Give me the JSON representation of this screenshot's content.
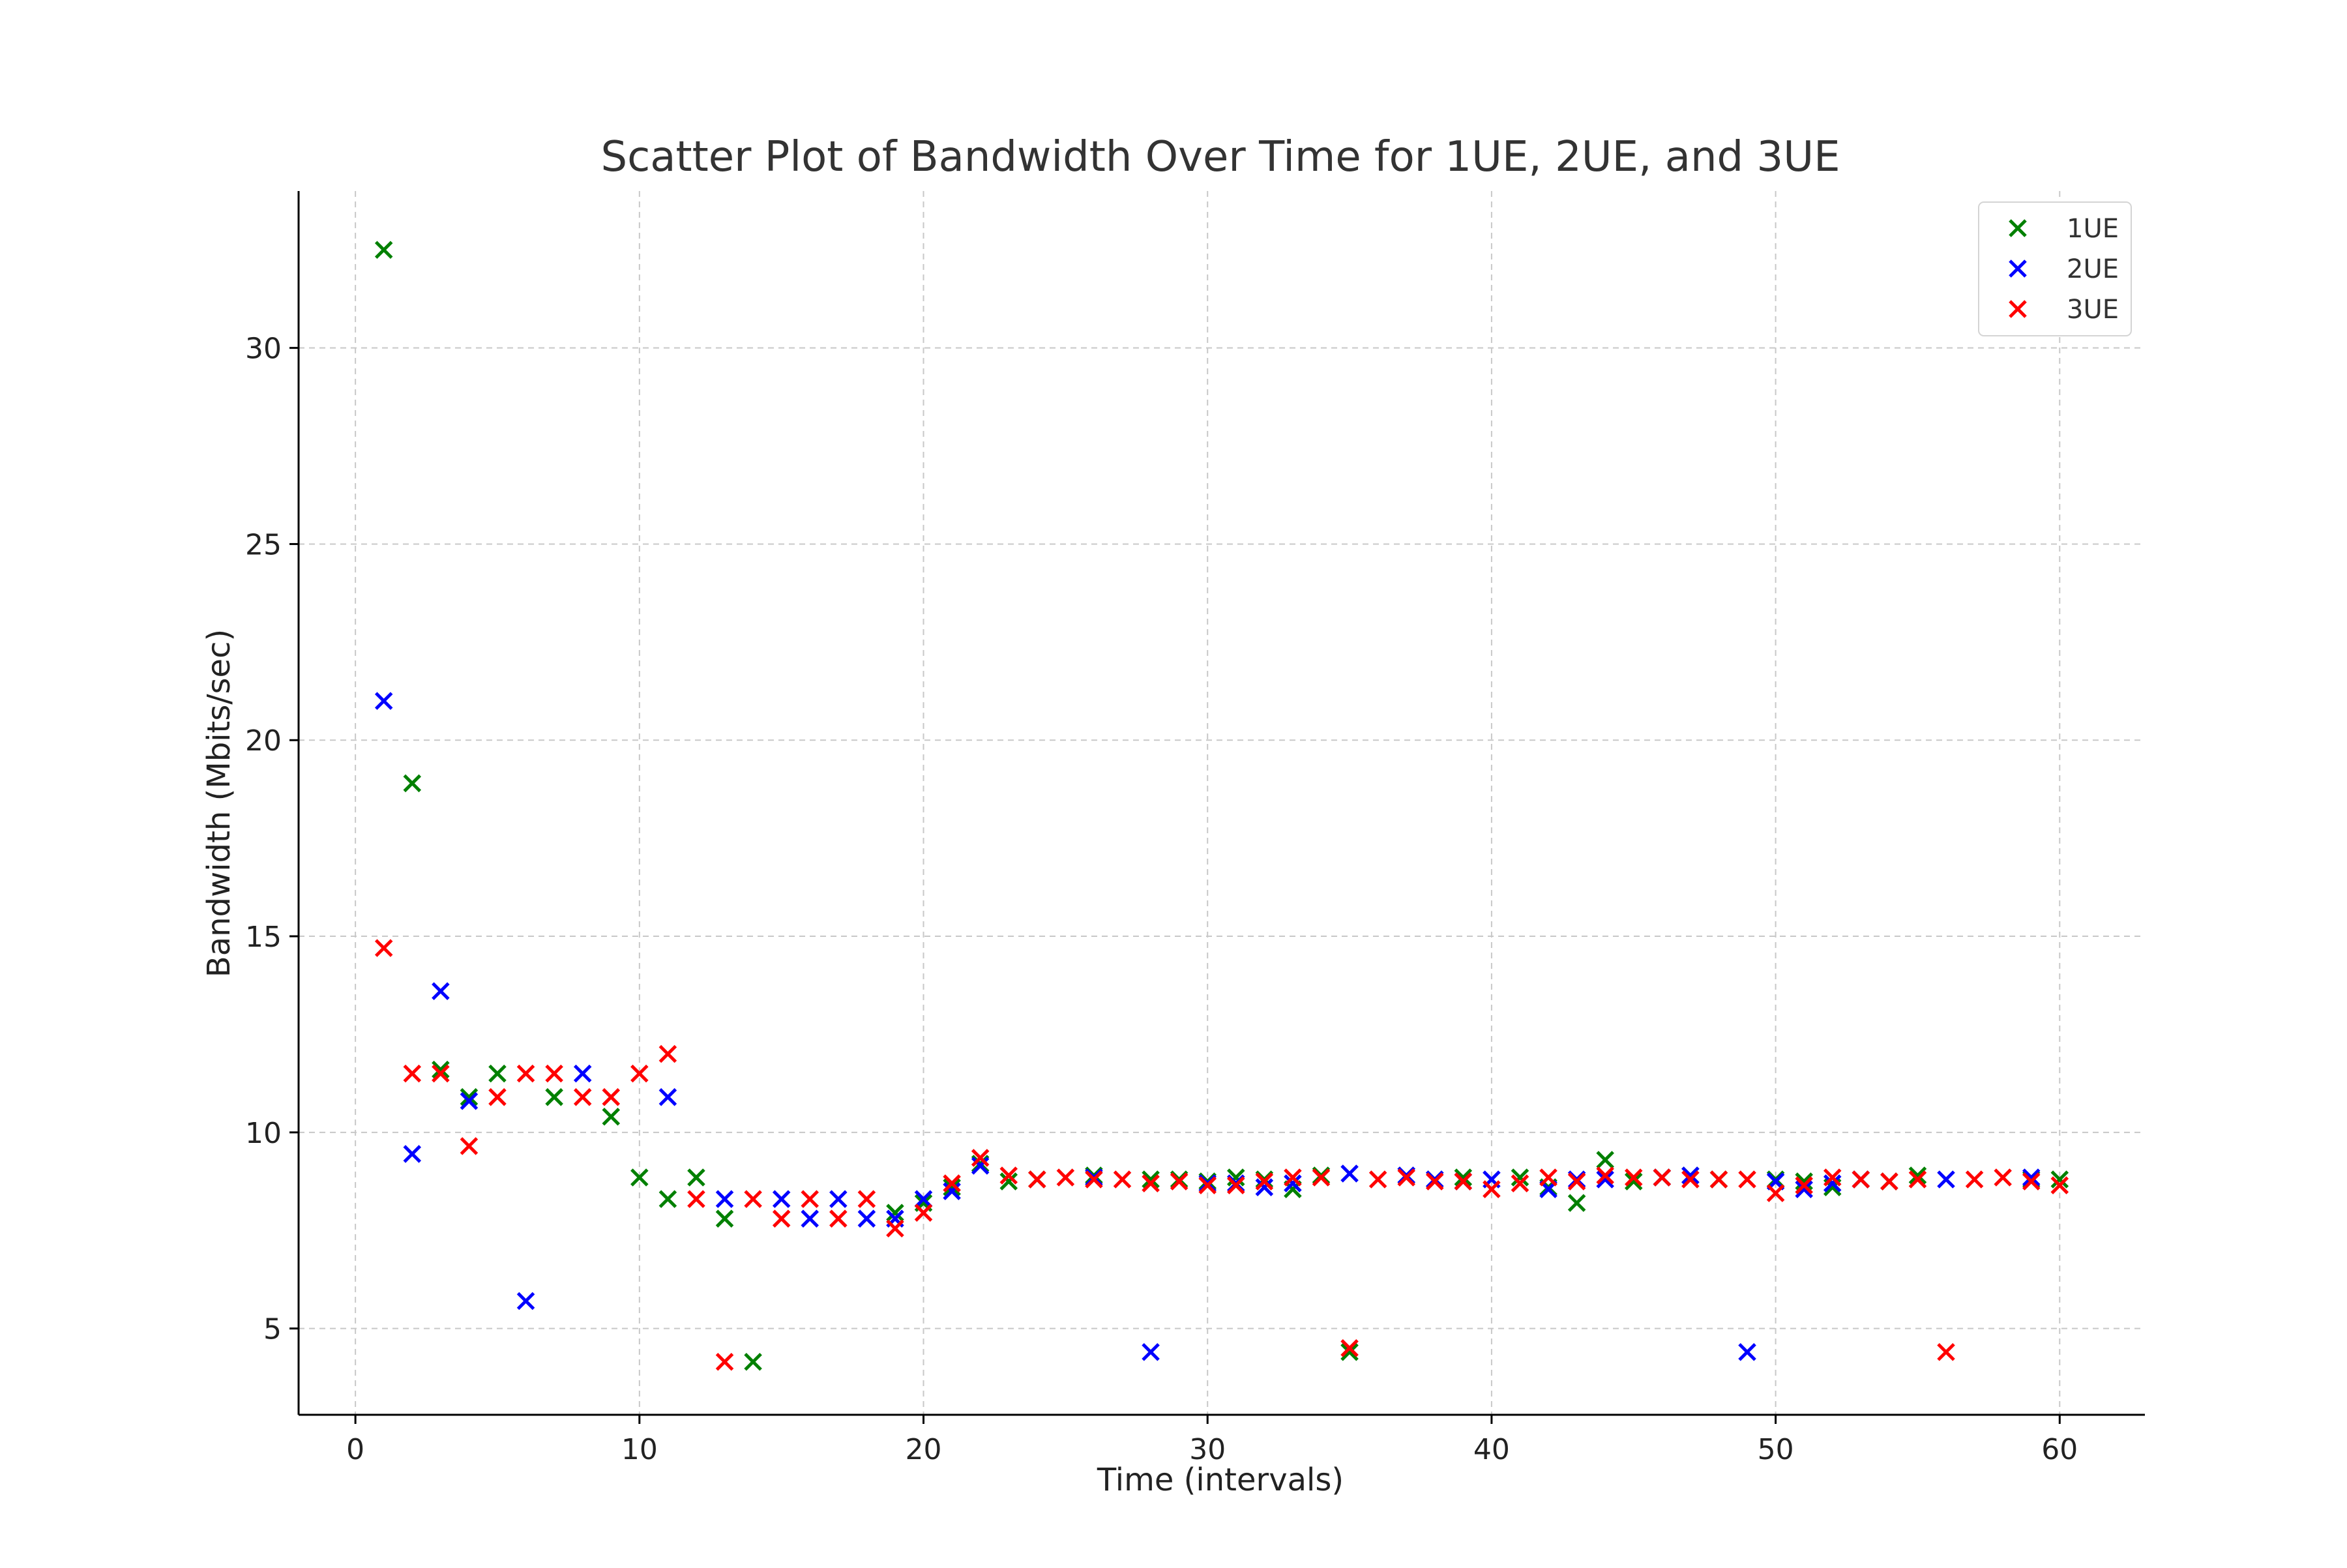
{
  "chart_data": {
    "type": "scatter",
    "title": "Scatter Plot of Bandwidth Over Time for 1UE, 2UE, and 3UE",
    "xlabel": "Time (intervals)",
    "ylabel": "Bandwidth (Mbits/sec)",
    "xlim": [
      -2,
      63
    ],
    "ylim": [
      2.8,
      34
    ],
    "xticks": [
      0,
      10,
      20,
      30,
      40,
      50,
      60
    ],
    "yticks": [
      5,
      10,
      15,
      20,
      25,
      30
    ],
    "xtick_labels": [
      "0",
      "10",
      "20",
      "30",
      "40",
      "50",
      "60"
    ],
    "ytick_labels": [
      "5",
      "10",
      "15",
      "20",
      "25",
      "30"
    ],
    "grid": true,
    "legend_position": "top-right",
    "marker": "x",
    "series": [
      {
        "name": "1UE",
        "color": "#008000",
        "x": [
          1,
          2,
          3,
          4,
          5,
          7,
          9,
          10,
          11,
          12,
          13,
          14,
          19,
          20,
          21,
          22,
          23,
          24,
          26,
          28,
          29,
          30,
          31,
          32,
          33,
          34,
          35,
          37,
          38,
          39,
          41,
          42,
          43,
          44,
          45,
          46,
          47,
          48,
          50,
          51,
          52,
          53,
          54,
          55,
          59,
          60
        ],
        "y": [
          32.5,
          18.9,
          11.6,
          10.9,
          11.5,
          10.9,
          10.4,
          8.85,
          8.3,
          8.85,
          7.8,
          4.15,
          7.95,
          8.2,
          8.6,
          9.2,
          8.75,
          8.8,
          8.9,
          8.8,
          8.8,
          8.75,
          8.85,
          8.8,
          8.55,
          8.9,
          4.4,
          8.9,
          8.8,
          8.85,
          8.85,
          8.6,
          8.2,
          9.3,
          8.75,
          8.85,
          8.9,
          8.8,
          8.8,
          8.75,
          8.6,
          8.8,
          8.75,
          8.9,
          8.8,
          8.8
        ]
      },
      {
        "name": "2UE",
        "color": "#0000ff",
        "x": [
          1,
          2,
          3,
          4,
          6,
          8,
          11,
          13,
          15,
          16,
          17,
          18,
          19,
          20,
          21,
          22,
          26,
          28,
          30,
          31,
          32,
          33,
          35,
          37,
          38,
          39,
          40,
          42,
          43,
          44,
          46,
          47,
          49,
          50,
          51,
          52,
          53,
          56,
          59
        ],
        "y": [
          21.0,
          9.45,
          13.6,
          10.8,
          5.7,
          11.5,
          10.9,
          8.3,
          8.3,
          7.8,
          8.3,
          7.8,
          7.8,
          8.3,
          8.5,
          9.15,
          8.85,
          4.4,
          8.7,
          8.7,
          8.6,
          8.7,
          8.95,
          8.9,
          8.8,
          8.75,
          8.8,
          8.55,
          8.8,
          8.8,
          8.85,
          8.9,
          4.4,
          8.75,
          8.55,
          8.7,
          8.8,
          8.8,
          8.85
        ]
      },
      {
        "name": "3UE",
        "color": "#ff0000",
        "x": [
          1,
          2,
          3,
          4,
          5,
          6,
          7,
          8,
          9,
          10,
          11,
          12,
          13,
          14,
          15,
          16,
          17,
          18,
          19,
          20,
          21,
          22,
          23,
          24,
          25,
          26,
          27,
          28,
          29,
          30,
          31,
          32,
          33,
          34,
          35,
          36,
          37,
          38,
          39,
          40,
          41,
          42,
          43,
          44,
          45,
          46,
          47,
          48,
          49,
          50,
          51,
          52,
          53,
          54,
          55,
          56,
          57,
          58,
          59,
          60
        ],
        "y": [
          14.7,
          11.5,
          11.5,
          9.65,
          10.9,
          11.5,
          11.5,
          10.9,
          10.9,
          11.5,
          12.0,
          8.3,
          4.15,
          8.3,
          7.8,
          8.3,
          7.8,
          8.3,
          7.55,
          7.95,
          8.7,
          9.35,
          8.9,
          8.8,
          8.85,
          8.8,
          8.8,
          8.7,
          8.75,
          8.65,
          8.65,
          8.75,
          8.85,
          8.85,
          4.5,
          8.8,
          8.85,
          8.75,
          8.75,
          8.55,
          8.7,
          8.85,
          8.75,
          8.9,
          8.85,
          8.85,
          8.8,
          8.8,
          8.8,
          8.45,
          8.65,
          8.85,
          8.8,
          8.75,
          8.8,
          4.4,
          8.8,
          8.85,
          8.75,
          8.65
        ]
      }
    ]
  }
}
